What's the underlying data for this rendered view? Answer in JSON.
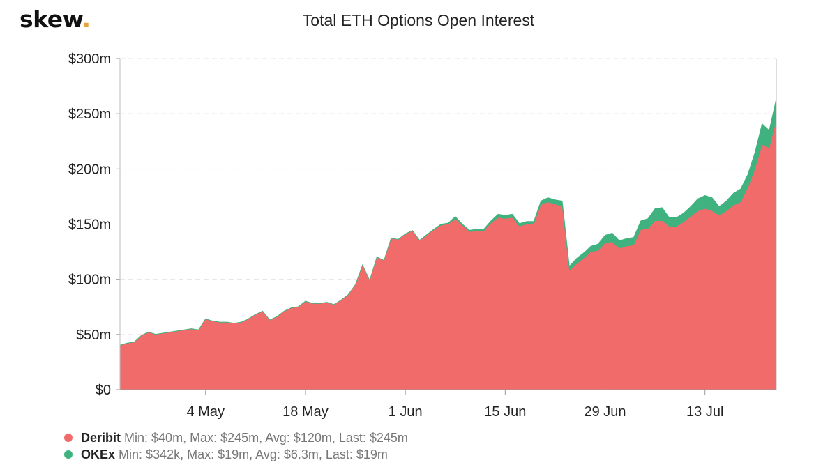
{
  "logo": {
    "text": "skew",
    "dot": "."
  },
  "chart_data": {
    "type": "area",
    "stacked": true,
    "title": "Total ETH Options Open Interest",
    "xlabel": "",
    "ylabel": "",
    "ylim": [
      0,
      300
    ],
    "yticks": [
      0,
      50,
      100,
      150,
      200,
      250,
      300
    ],
    "ytick_labels": [
      "$0",
      "$50m",
      "$100m",
      "$150m",
      "$200m",
      "$250m",
      "$300m"
    ],
    "x_start": "2020-04-22",
    "x_end": "2020-07-22",
    "xticks": [
      "2020-05-04",
      "2020-05-18",
      "2020-06-01",
      "2020-06-15",
      "2020-06-29",
      "2020-07-13"
    ],
    "xtick_labels": [
      "4 May",
      "18 May",
      "1 Jun",
      "15 Jun",
      "29 Jun",
      "13 Jul"
    ],
    "grid": true,
    "legend_position": "bottom-left",
    "series": [
      {
        "name": "Deribit",
        "color": "#f26b6b",
        "stats": "Min: $40m, Max: $245m, Avg: $120m, Last: $245m",
        "points": [
          [
            "2020-04-22",
            40
          ],
          [
            "2020-04-23",
            42
          ],
          [
            "2020-04-24",
            43
          ],
          [
            "2020-04-25",
            49
          ],
          [
            "2020-04-26",
            52
          ],
          [
            "2020-04-27",
            50
          ],
          [
            "2020-04-28",
            51
          ],
          [
            "2020-04-29",
            52
          ],
          [
            "2020-04-30",
            53
          ],
          [
            "2020-05-01",
            54
          ],
          [
            "2020-05-02",
            55
          ],
          [
            "2020-05-03",
            54
          ],
          [
            "2020-05-04",
            64
          ],
          [
            "2020-05-05",
            62
          ],
          [
            "2020-05-06",
            61
          ],
          [
            "2020-05-07",
            61
          ],
          [
            "2020-05-08",
            60
          ],
          [
            "2020-05-09",
            61
          ],
          [
            "2020-05-10",
            64
          ],
          [
            "2020-05-11",
            68
          ],
          [
            "2020-05-12",
            71
          ],
          [
            "2020-05-13",
            63
          ],
          [
            "2020-05-14",
            66
          ],
          [
            "2020-05-15",
            71
          ],
          [
            "2020-05-16",
            74
          ],
          [
            "2020-05-17",
            75
          ],
          [
            "2020-05-18",
            80
          ],
          [
            "2020-05-19",
            78
          ],
          [
            "2020-05-20",
            78
          ],
          [
            "2020-05-21",
            79
          ],
          [
            "2020-05-22",
            77
          ],
          [
            "2020-05-23",
            81
          ],
          [
            "2020-05-24",
            86
          ],
          [
            "2020-05-25",
            95
          ],
          [
            "2020-05-26",
            113
          ],
          [
            "2020-05-27",
            99
          ],
          [
            "2020-05-28",
            120
          ],
          [
            "2020-05-29",
            117
          ],
          [
            "2020-05-30",
            137
          ],
          [
            "2020-05-31",
            136
          ],
          [
            "2020-06-01",
            141
          ],
          [
            "2020-06-02",
            144
          ],
          [
            "2020-06-03",
            135
          ],
          [
            "2020-06-04",
            140
          ],
          [
            "2020-06-05",
            145
          ],
          [
            "2020-06-06",
            149
          ],
          [
            "2020-06-07",
            150
          ],
          [
            "2020-06-08",
            155
          ],
          [
            "2020-06-09",
            149
          ],
          [
            "2020-06-10",
            143
          ],
          [
            "2020-06-11",
            144
          ],
          [
            "2020-06-12",
            144
          ],
          [
            "2020-06-13",
            151
          ],
          [
            "2020-06-14",
            156
          ],
          [
            "2020-06-15",
            155
          ],
          [
            "2020-06-16",
            156
          ],
          [
            "2020-06-17",
            148
          ],
          [
            "2020-06-18",
            150
          ],
          [
            "2020-06-19",
            150
          ],
          [
            "2020-06-20",
            168
          ],
          [
            "2020-06-21",
            170
          ],
          [
            "2020-06-22",
            168
          ],
          [
            "2020-06-23",
            166
          ],
          [
            "2020-06-24",
            108
          ],
          [
            "2020-06-25",
            114
          ],
          [
            "2020-06-26",
            119
          ],
          [
            "2020-06-27",
            125
          ],
          [
            "2020-06-28",
            126
          ],
          [
            "2020-06-29",
            133
          ],
          [
            "2020-06-30",
            134
          ],
          [
            "2020-07-01",
            128
          ],
          [
            "2020-07-02",
            130
          ],
          [
            "2020-07-03",
            131
          ],
          [
            "2020-07-04",
            145
          ],
          [
            "2020-07-05",
            146
          ],
          [
            "2020-07-06",
            153
          ],
          [
            "2020-07-07",
            153
          ],
          [
            "2020-07-08",
            148
          ],
          [
            "2020-07-09",
            148
          ],
          [
            "2020-07-10",
            152
          ],
          [
            "2020-07-11",
            157
          ],
          [
            "2020-07-12",
            162
          ],
          [
            "2020-07-13",
            164
          ],
          [
            "2020-07-14",
            162
          ],
          [
            "2020-07-15",
            158
          ],
          [
            "2020-07-16",
            162
          ],
          [
            "2020-07-17",
            167
          ],
          [
            "2020-07-18",
            170
          ],
          [
            "2020-07-19",
            183
          ],
          [
            "2020-07-20",
            200
          ],
          [
            "2020-07-21",
            222
          ],
          [
            "2020-07-22",
            219
          ],
          [
            "2020-07-23",
            245
          ]
        ]
      },
      {
        "name": "OKEx",
        "color": "#3fb27f",
        "stats": "Min: $342k, Max: $19m, Avg: $6.3m, Last: $19m",
        "points": [
          [
            "2020-04-22",
            0.3
          ],
          [
            "2020-04-23",
            0.3
          ],
          [
            "2020-04-24",
            0.3
          ],
          [
            "2020-04-25",
            0.3
          ],
          [
            "2020-04-26",
            0.3
          ],
          [
            "2020-04-27",
            0.3
          ],
          [
            "2020-04-28",
            0.3
          ],
          [
            "2020-04-29",
            0.3
          ],
          [
            "2020-04-30",
            0.3
          ],
          [
            "2020-05-01",
            0.3
          ],
          [
            "2020-05-02",
            0.3
          ],
          [
            "2020-05-03",
            0.3
          ],
          [
            "2020-05-04",
            0.3
          ],
          [
            "2020-05-05",
            0.3
          ],
          [
            "2020-05-06",
            0.3
          ],
          [
            "2020-05-07",
            0.3
          ],
          [
            "2020-05-08",
            0.3
          ],
          [
            "2020-05-09",
            0.3
          ],
          [
            "2020-05-10",
            0.3
          ],
          [
            "2020-05-11",
            0.3
          ],
          [
            "2020-05-12",
            0.3
          ],
          [
            "2020-05-13",
            0.3
          ],
          [
            "2020-05-14",
            0.3
          ],
          [
            "2020-05-15",
            0.3
          ],
          [
            "2020-05-16",
            0.3
          ],
          [
            "2020-05-17",
            0.3
          ],
          [
            "2020-05-18",
            0.3
          ],
          [
            "2020-05-19",
            0.3
          ],
          [
            "2020-05-20",
            0.3
          ],
          [
            "2020-05-21",
            0.3
          ],
          [
            "2020-05-22",
            0.3
          ],
          [
            "2020-05-23",
            0.3
          ],
          [
            "2020-05-24",
            0.3
          ],
          [
            "2020-05-25",
            0.3
          ],
          [
            "2020-05-26",
            0.3
          ],
          [
            "2020-05-27",
            0.3
          ],
          [
            "2020-05-28",
            0.3
          ],
          [
            "2020-05-29",
            0.3
          ],
          [
            "2020-05-30",
            0.3
          ],
          [
            "2020-05-31",
            0.3
          ],
          [
            "2020-06-01",
            0.3
          ],
          [
            "2020-06-02",
            0.3
          ],
          [
            "2020-06-03",
            0.5
          ],
          [
            "2020-06-04",
            0.5
          ],
          [
            "2020-06-05",
            0.5
          ],
          [
            "2020-06-06",
            1
          ],
          [
            "2020-06-07",
            1
          ],
          [
            "2020-06-08",
            2
          ],
          [
            "2020-06-09",
            1
          ],
          [
            "2020-06-10",
            1.5
          ],
          [
            "2020-06-11",
            1.5
          ],
          [
            "2020-06-12",
            1.5
          ],
          [
            "2020-06-13",
            2
          ],
          [
            "2020-06-14",
            3
          ],
          [
            "2020-06-15",
            3
          ],
          [
            "2020-06-16",
            3
          ],
          [
            "2020-06-17",
            2.5
          ],
          [
            "2020-06-18",
            2.5
          ],
          [
            "2020-06-19",
            2.5
          ],
          [
            "2020-06-20",
            3
          ],
          [
            "2020-06-21",
            4
          ],
          [
            "2020-06-22",
            4
          ],
          [
            "2020-06-23",
            5
          ],
          [
            "2020-06-24",
            4
          ],
          [
            "2020-06-25",
            5
          ],
          [
            "2020-06-26",
            5
          ],
          [
            "2020-06-27",
            5
          ],
          [
            "2020-06-28",
            6
          ],
          [
            "2020-06-29",
            7
          ],
          [
            "2020-06-30",
            8
          ],
          [
            "2020-07-01",
            7
          ],
          [
            "2020-07-02",
            7
          ],
          [
            "2020-07-03",
            7
          ],
          [
            "2020-07-04",
            8
          ],
          [
            "2020-07-05",
            9
          ],
          [
            "2020-07-06",
            11
          ],
          [
            "2020-07-07",
            12
          ],
          [
            "2020-07-08",
            8
          ],
          [
            "2020-07-09",
            8
          ],
          [
            "2020-07-10",
            8
          ],
          [
            "2020-07-11",
            9
          ],
          [
            "2020-07-12",
            11
          ],
          [
            "2020-07-13",
            12
          ],
          [
            "2020-07-14",
            12
          ],
          [
            "2020-07-15",
            8
          ],
          [
            "2020-07-16",
            9
          ],
          [
            "2020-07-17",
            11
          ],
          [
            "2020-07-18",
            12
          ],
          [
            "2020-07-19",
            12
          ],
          [
            "2020-07-20",
            15
          ],
          [
            "2020-07-21",
            19
          ],
          [
            "2020-07-22",
            16
          ],
          [
            "2020-07-23",
            19
          ]
        ]
      }
    ]
  }
}
